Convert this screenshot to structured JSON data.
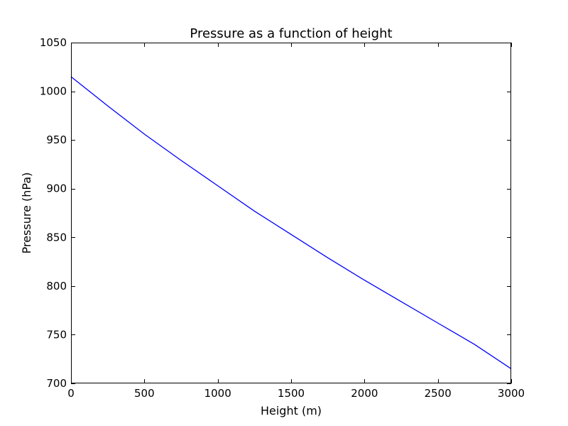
{
  "chart_data": {
    "type": "line",
    "title": "Pressure as a function of height",
    "xlabel": "Height (m)",
    "ylabel": "Pressure (hPa)",
    "xlim": [
      0,
      3000
    ],
    "ylim": [
      700,
      1050
    ],
    "xticks": [
      0,
      500,
      1000,
      1500,
      2000,
      2500,
      3000
    ],
    "yticks": [
      700,
      750,
      800,
      850,
      900,
      950,
      1000,
      1050
    ],
    "grid": false,
    "series": [
      {
        "color": "#0000ff",
        "x": [
          0,
          250,
          500,
          750,
          1000,
          1250,
          1500,
          1750,
          2000,
          2250,
          2500,
          2750,
          3000
        ],
        "y": [
          1015,
          985,
          956,
          929,
          903,
          877,
          853,
          829,
          806,
          784,
          762,
          740,
          715
        ]
      }
    ]
  }
}
